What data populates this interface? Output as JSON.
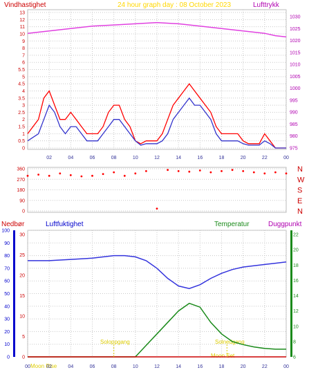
{
  "header": {
    "left_label": "Vindhastighet",
    "center_label": "24 hour graph day : 08 October 2023",
    "right_label": "Lufttrykk"
  },
  "bottom_header": {
    "nedbor_label": "Nedbør",
    "humidity_label": "Luftfuktighet",
    "temperature_label": "Temperatur",
    "dewpoint_label": "Duggpunkt"
  },
  "events": {
    "sunrise": "Soloppgang",
    "sunset": "Solnedgang",
    "moonrise": "Moon Rise",
    "moonset": "Moon Set"
  },
  "colors": {
    "wind": "#ff0000",
    "wind_avg": "#3333cc",
    "pressure": "#e040e0",
    "humidity": "#3333dd",
    "temperature": "#1a8a1a",
    "dewpoint": "#ff33ff",
    "rain": "#cc0000",
    "grid": "#c8c8c8",
    "title": "#ffd700",
    "events": "#ddcc00"
  },
  "chart_data": [
    {
      "type": "line",
      "x_ticks": [
        "02",
        "04",
        "06",
        "08",
        "10",
        "12",
        "14",
        "16",
        "18",
        "20",
        "22",
        "00"
      ],
      "y_left_ticks": [
        "0",
        "0.5",
        "1",
        "1.5",
        "2",
        "2.5",
        "3",
        "3.5",
        "4",
        "4.5",
        "5",
        "5.5",
        "6",
        "7",
        "8",
        "9",
        "10",
        "11",
        "12",
        "13"
      ],
      "y_right_ticks": [
        "975",
        "980",
        "985",
        "990",
        "995",
        "1000",
        "1005",
        "1010",
        "1015",
        "1020",
        "1025",
        "1030"
      ],
      "xlim": [
        0,
        24
      ],
      "series": [
        {
          "unit": "m/s",
          "x": [
            0,
            1,
            1.5,
            2,
            2.5,
            3,
            3.5,
            4,
            4.5,
            5,
            5.5,
            6,
            6.5,
            7,
            7.5,
            8,
            8.5,
            9,
            9.5,
            10,
            10.5,
            11,
            11.5,
            12,
            12.5,
            13,
            13.5,
            14,
            14.5,
            15,
            15.5,
            16,
            16.5,
            17,
            17.5,
            18,
            18.5,
            19,
            19.5,
            20,
            20.5,
            21,
            21.5,
            22,
            22.5,
            23,
            23.5,
            24
          ],
          "values": [
            1,
            2,
            3.5,
            4,
            3,
            2,
            2,
            2.5,
            2,
            1.5,
            1,
            1,
            1,
            1.5,
            2.5,
            3,
            3,
            2,
            1.5,
            0.5,
            0.3,
            0.5,
            0.5,
            0.5,
            1,
            2,
            3,
            3.5,
            4,
            4.5,
            4,
            3.5,
            3,
            2.5,
            1.5,
            1,
            1,
            1,
            1,
            0.5,
            0.3,
            0.3,
            0.3,
            1,
            0.5,
            0,
            0,
            0
          ]
        },
        {
          "unit": "m/s",
          "x": [
            0,
            1,
            1.5,
            2,
            2.5,
            3,
            3.5,
            4,
            4.5,
            5,
            5.5,
            6,
            6.5,
            7,
            7.5,
            8,
            8.5,
            9,
            9.5,
            10,
            10.5,
            11,
            11.5,
            12,
            12.5,
            13,
            13.5,
            14,
            14.5,
            15,
            15.5,
            16,
            16.5,
            17,
            17.5,
            18,
            18.5,
            19,
            19.5,
            20,
            20.5,
            21,
            21.5,
            22,
            22.5,
            23,
            23.5,
            24
          ],
          "values": [
            0.5,
            1,
            2,
            3,
            2.5,
            1.5,
            1,
            1.5,
            1.5,
            1,
            0.5,
            0.5,
            0.5,
            1,
            1.5,
            2,
            2,
            1.5,
            1,
            0.5,
            0.2,
            0.3,
            0.3,
            0.3,
            0.5,
            1,
            2,
            2.5,
            3,
            3.5,
            3,
            3,
            2.5,
            2,
            1,
            0.5,
            0.5,
            0.5,
            0.5,
            0.3,
            0.2,
            0.2,
            0.2,
            0.5,
            0.3,
            0,
            0,
            0
          ]
        },
        {
          "unit": "hPa",
          "x": [
            0,
            2,
            4,
            6,
            8,
            10,
            12,
            14,
            16,
            18,
            20,
            22,
            23,
            24
          ],
          "values": [
            1023,
            1024,
            1025,
            1026,
            1026.5,
            1027,
            1027.5,
            1027,
            1026,
            1025,
            1024,
            1023,
            1022,
            1021.5
          ]
        }
      ]
    },
    {
      "type": "scatter",
      "y_ticks": [
        "360",
        "270",
        "180",
        "90",
        "0"
      ],
      "compass": [
        "N",
        "W",
        "S",
        "E",
        "N"
      ],
      "ylim": [
        0,
        360
      ],
      "series": [
        {
          "x": [
            0,
            1,
            2,
            3,
            4,
            5,
            6,
            7,
            8,
            9,
            10,
            11,
            12,
            13,
            14,
            15,
            16,
            17,
            18,
            19,
            20,
            21,
            22,
            23,
            24
          ],
          "values": [
            300,
            310,
            300,
            320,
            305,
            295,
            300,
            315,
            330,
            300,
            320,
            340,
            20,
            350,
            340,
            335,
            345,
            330,
            340,
            350,
            340,
            330,
            320,
            330,
            320
          ]
        }
      ]
    },
    {
      "type": "line",
      "x_ticks": [
        "00",
        "02",
        "04",
        "06",
        "08",
        "10",
        "12",
        "14",
        "16",
        "18",
        "20",
        "22",
        "00"
      ],
      "y_left_ticks": [
        "0",
        "10",
        "20",
        "30",
        "40",
        "50",
        "60",
        "70",
        "80",
        "90",
        "100"
      ],
      "y_mid_ticks": [
        "0",
        "5",
        "10",
        "15",
        "20",
        "25",
        "30"
      ],
      "y_right_ticks": [
        "6",
        "8",
        "10",
        "12",
        "14",
        "16",
        "18",
        "20",
        "22"
      ],
      "xlim": [
        0,
        24
      ],
      "series": [
        {
          "unit": "%",
          "x": [
            0,
            2,
            4,
            6,
            8,
            9,
            10,
            11,
            12,
            13,
            14,
            15,
            16,
            17,
            18,
            19,
            20,
            21,
            22,
            23,
            24
          ],
          "values": [
            76,
            76,
            77,
            78,
            80,
            80,
            79,
            76,
            70,
            62,
            56,
            54,
            57,
            62,
            66,
            69,
            71,
            72,
            73,
            74,
            75
          ]
        },
        {
          "unit": "°C",
          "x": [
            0,
            2,
            4,
            6,
            8,
            9,
            10,
            11,
            12,
            13,
            14,
            15,
            16,
            17,
            18,
            19,
            20,
            21,
            22,
            23,
            24
          ],
          "values": [
            6,
            6,
            6,
            6,
            6,
            6,
            6,
            7.5,
            9,
            10.5,
            12,
            13,
            12.5,
            10.5,
            9,
            8,
            7.6,
            7.3,
            7.1,
            7,
            7
          ]
        },
        {
          "unit": "mm",
          "x": [
            0,
            24
          ],
          "values": [
            0,
            0
          ]
        }
      ]
    }
  ]
}
